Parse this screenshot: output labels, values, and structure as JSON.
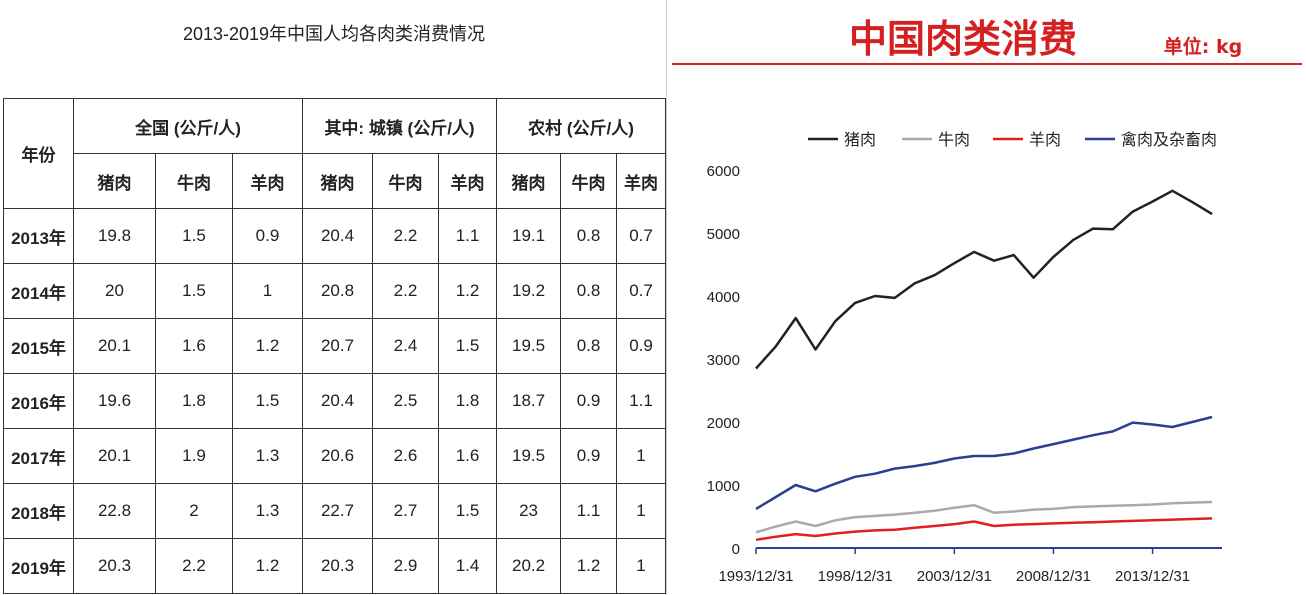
{
  "table": {
    "title": "2013-2019年中国人均各肉类消费情况",
    "year_header": "年份",
    "groups": [
      "全国 (公斤/人)",
      "其中: 城镇 (公斤/人)",
      "农村 (公斤/人)"
    ],
    "subheaders": [
      "猪肉",
      "牛肉",
      "羊肉",
      "猪肉",
      "牛肉",
      "羊肉",
      "猪肉",
      "牛肉",
      "羊肉"
    ],
    "rows": [
      {
        "year": "2013年",
        "values": [
          "19.8",
          "1.5",
          "0.9",
          "20.4",
          "2.2",
          "1.1",
          "19.1",
          "0.8",
          "0.7"
        ]
      },
      {
        "year": "2014年",
        "values": [
          "20",
          "1.5",
          "1",
          "20.8",
          "2.2",
          "1.2",
          "19.2",
          "0.8",
          "0.7"
        ]
      },
      {
        "year": "2015年",
        "values": [
          "20.1",
          "1.6",
          "1.2",
          "20.7",
          "2.4",
          "1.5",
          "19.5",
          "0.8",
          "0.9"
        ]
      },
      {
        "year": "2016年",
        "values": [
          "19.6",
          "1.8",
          "1.5",
          "20.4",
          "2.5",
          "1.8",
          "18.7",
          "0.9",
          "1.1"
        ]
      },
      {
        "year": "2017年",
        "values": [
          "20.1",
          "1.9",
          "1.3",
          "20.6",
          "2.6",
          "1.6",
          "19.5",
          "0.9",
          "1"
        ]
      },
      {
        "year": "2018年",
        "values": [
          "22.8",
          "2",
          "1.3",
          "22.7",
          "2.7",
          "1.5",
          "23",
          "1.1",
          "1"
        ]
      },
      {
        "year": "2019年",
        "values": [
          "20.3",
          "2.2",
          "1.2",
          "20.3",
          "2.9",
          "1.4",
          "20.2",
          "1.2",
          "1"
        ]
      }
    ]
  },
  "chart_data": {
    "type": "line",
    "title": "中国肉类消费",
    "unit_label": "单位: kg",
    "x": [
      1993,
      1994,
      1995,
      1996,
      1997,
      1998,
      1999,
      2000,
      2001,
      2002,
      2003,
      2004,
      2005,
      2006,
      2007,
      2008,
      2009,
      2010,
      2011,
      2012,
      2013,
      2014,
      2015,
      2016
    ],
    "x_tick_labels": [
      "1993/12/31",
      "1998/12/31",
      "2003/12/31",
      "2008/12/31",
      "2013/12/31"
    ],
    "x_tick_years": [
      1993,
      1998,
      2003,
      2008,
      2013
    ],
    "y_ticks": [
      0,
      1000,
      2000,
      3000,
      4000,
      5000,
      6000
    ],
    "ylim": [
      0,
      6000
    ],
    "legend_position": "top",
    "series": [
      {
        "name": "猪肉",
        "color": "#222222",
        "values": [
          2850,
          3200,
          3650,
          3150,
          3600,
          3890,
          4000,
          3970,
          4200,
          4330,
          4520,
          4700,
          4560,
          4650,
          4290,
          4620,
          4890,
          5070,
          5060,
          5340,
          5500,
          5670,
          5490,
          5300
        ]
      },
      {
        "name": "牛肉",
        "color": "#aaaaaa",
        "values": [
          250,
          340,
          420,
          350,
          440,
          490,
          510,
          530,
          560,
          590,
          640,
          680,
          560,
          580,
          610,
          620,
          650,
          660,
          670,
          680,
          690,
          710,
          720,
          730
        ]
      },
      {
        "name": "羊肉",
        "color": "#e02020",
        "values": [
          130,
          180,
          220,
          190,
          230,
          260,
          280,
          290,
          320,
          350,
          380,
          420,
          350,
          370,
          380,
          390,
          400,
          410,
          420,
          430,
          440,
          450,
          460,
          470
        ]
      },
      {
        "name": "禽肉及杂畜肉",
        "color": "#2a3f8f",
        "values": [
          620,
          810,
          1000,
          900,
          1020,
          1130,
          1180,
          1260,
          1300,
          1350,
          1420,
          1460,
          1460,
          1500,
          1580,
          1650,
          1720,
          1790,
          1850,
          1990,
          1960,
          1920,
          2000,
          2080
        ]
      }
    ]
  }
}
